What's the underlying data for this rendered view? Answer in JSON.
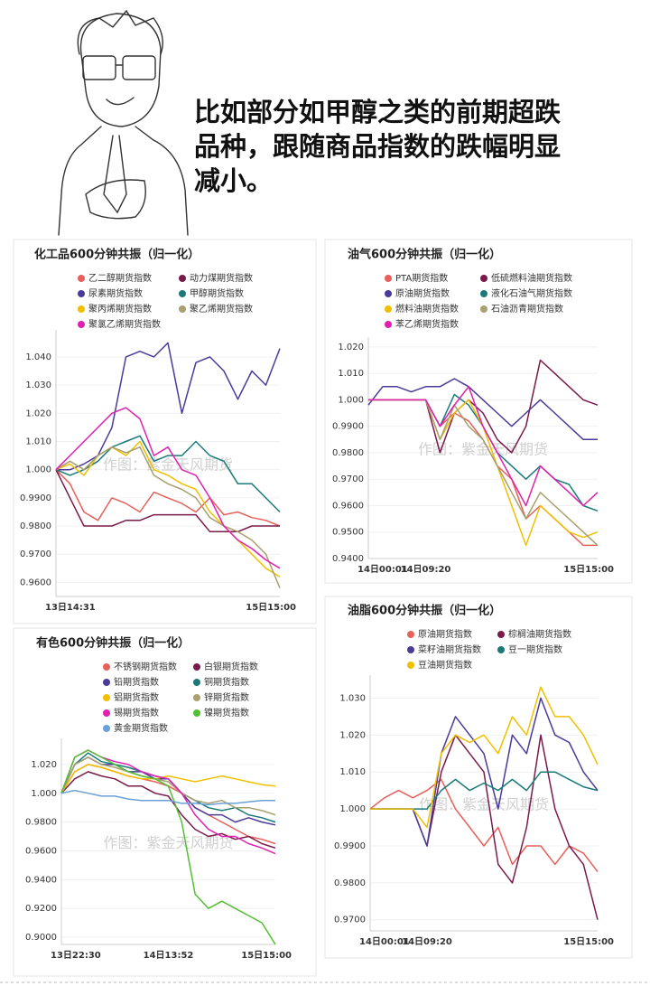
{
  "caption": [
    "比如部分如甲醇之类的前期超跌",
    "品种，跟随商品指数的跌幅明显",
    "减小。"
  ],
  "chart_data": [
    {
      "type": "line",
      "title": "化工品600分钟共振（归一化）",
      "watermark": "作图：紫金天风期货",
      "categories": [
        "13日14:31",
        null,
        null,
        null,
        null,
        null,
        null,
        null,
        null,
        null,
        null,
        null,
        null,
        null,
        null,
        null,
        "15日15:00"
      ],
      "ylim": [
        0.955,
        1.048
      ],
      "grid": true,
      "yticks": [
        {
          "value": 0.96,
          "label": "0.9600"
        },
        {
          "value": 0.97,
          "label": "0.9700"
        },
        {
          "value": 0.98,
          "label": "0.9800"
        },
        {
          "value": 0.99,
          "label": "0.9900"
        },
        {
          "value": 1.0,
          "label": "1.000"
        },
        {
          "value": 1.01,
          "label": "1.010"
        },
        {
          "value": 1.02,
          "label": "1.020"
        },
        {
          "value": 1.03,
          "label": "1.030"
        },
        {
          "value": 1.04,
          "label": "1.040"
        }
      ],
      "series": [
        {
          "name": "乙二醇期货指数",
          "color": "#e8605a",
          "values": [
            1.0,
            0.995,
            0.985,
            0.982,
            0.99,
            0.988,
            0.985,
            0.992,
            0.99,
            0.988,
            0.985,
            0.99,
            0.984,
            0.985,
            0.983,
            0.982,
            0.98
          ]
        },
        {
          "name": "动力煤期货指数",
          "color": "#7a1a4a",
          "values": [
            1.0,
            0.99,
            0.98,
            0.98,
            0.98,
            0.982,
            0.982,
            0.984,
            0.984,
            0.984,
            0.984,
            0.978,
            0.978,
            0.978,
            0.98,
            0.98,
            0.98
          ]
        },
        {
          "name": "尿素期货指数",
          "color": "#4a3a9a",
          "values": [
            1.0,
            1.0,
            1.002,
            1.005,
            1.015,
            1.04,
            1.042,
            1.04,
            1.045,
            1.02,
            1.038,
            1.04,
            1.035,
            1.025,
            1.035,
            1.03,
            1.043
          ]
        },
        {
          "name": "甲醇期货指数",
          "color": "#1a7a7a",
          "values": [
            1.0,
            0.998,
            1.0,
            1.003,
            1.008,
            1.01,
            1.012,
            1.003,
            1.005,
            1.005,
            1.01,
            1.005,
            1.003,
            0.995,
            0.995,
            0.99,
            0.985
          ]
        },
        {
          "name": "聚丙烯期货指数",
          "color": "#f0c000",
          "values": [
            1.0,
            1.002,
            0.998,
            1.005,
            1.008,
            1.005,
            1.01,
            1.0,
            0.998,
            0.995,
            0.993,
            0.985,
            0.98,
            0.975,
            0.97,
            0.965,
            0.962
          ]
        },
        {
          "name": "聚乙烯期货指数",
          "color": "#a8a070",
          "values": [
            1.0,
            1.003,
            1.0,
            1.005,
            1.008,
            1.006,
            1.008,
            0.998,
            0.995,
            0.993,
            0.99,
            0.983,
            0.98,
            0.978,
            0.975,
            0.97,
            0.958
          ]
        },
        {
          "name": "聚氯乙烯期货指数",
          "color": "#e020b0",
          "values": [
            1.0,
            1.005,
            1.01,
            1.015,
            1.02,
            1.022,
            1.018,
            1.005,
            1.008,
            1.0,
            0.998,
            0.99,
            0.98,
            0.975,
            0.972,
            0.968,
            0.965
          ]
        }
      ]
    },
    {
      "type": "line",
      "title": "油气600分钟共振（归一化）",
      "watermark": "作图：紫金天风期货",
      "categories": [
        "14日00:01",
        null,
        null,
        null,
        "14日09:20",
        null,
        null,
        null,
        null,
        null,
        null,
        null,
        null,
        null,
        null,
        null,
        "15日15:00"
      ],
      "ylim": [
        0.94,
        1.022
      ],
      "grid": true,
      "yticks": [
        {
          "value": 0.94,
          "label": "0.9400"
        },
        {
          "value": 0.95,
          "label": "0.9500"
        },
        {
          "value": 0.96,
          "label": "0.9600"
        },
        {
          "value": 0.97,
          "label": "0.9700"
        },
        {
          "value": 0.98,
          "label": "0.9800"
        },
        {
          "value": 0.99,
          "label": "0.9900"
        },
        {
          "value": 1.0,
          "label": "1.000"
        },
        {
          "value": 1.01,
          "label": "1.010"
        },
        {
          "value": 1.02,
          "label": "1.020"
        }
      ],
      "series": [
        {
          "name": "PTA期货指数",
          "color": "#e8605a",
          "values": [
            1.0,
            1.0,
            1.0,
            1.0,
            1.0,
            0.99,
            0.995,
            0.992,
            0.985,
            0.975,
            0.97,
            0.955,
            0.96,
            0.955,
            0.95,
            0.945,
            0.945
          ]
        },
        {
          "name": "低硫燃料油期货指数",
          "color": "#7a1a4a",
          "values": [
            1.0,
            1.0,
            1.0,
            1.0,
            1.0,
            0.98,
            0.995,
            1.0,
            0.995,
            0.985,
            0.98,
            0.99,
            1.015,
            1.01,
            1.005,
            1.0,
            0.998
          ]
        },
        {
          "name": "原油期货指数",
          "color": "#4a3a9a",
          "values": [
            0.998,
            1.005,
            1.005,
            1.003,
            1.005,
            1.005,
            1.008,
            1.005,
            1.0,
            0.995,
            0.99,
            0.995,
            1.0,
            0.995,
            0.99,
            0.985,
            0.985
          ]
        },
        {
          "name": "液化石油气期货指数",
          "color": "#1a7a7a",
          "values": [
            1.0,
            1.0,
            1.0,
            1.0,
            1.0,
            0.99,
            1.002,
            0.998,
            0.99,
            0.98,
            0.975,
            0.97,
            0.975,
            0.97,
            0.968,
            0.96,
            0.958
          ]
        },
        {
          "name": "燃料油期货指数",
          "color": "#f0c000",
          "values": [
            1.0,
            1.0,
            1.0,
            1.0,
            1.0,
            0.985,
            0.995,
            1.0,
            0.99,
            0.975,
            0.96,
            0.945,
            0.96,
            0.955,
            0.95,
            0.948,
            0.95
          ]
        },
        {
          "name": "石油沥青期货指数",
          "color": "#a8a070",
          "values": [
            1.0,
            1.0,
            1.0,
            1.0,
            1.0,
            0.985,
            0.998,
            0.99,
            0.985,
            0.975,
            0.965,
            0.955,
            0.965,
            0.96,
            0.955,
            0.95,
            0.945
          ]
        },
        {
          "name": "苯乙烯期货指数",
          "color": "#e020b0",
          "values": [
            1.0,
            1.0,
            1.0,
            1.0,
            1.0,
            0.99,
            0.998,
            1.005,
            0.99,
            0.98,
            0.97,
            0.96,
            0.975,
            0.97,
            0.965,
            0.96,
            0.965
          ]
        }
      ]
    },
    {
      "type": "line",
      "title": "有色600分钟共振（归一化）",
      "watermark": "作图：紫金天风期货",
      "categories": [
        "13日22:30",
        null,
        null,
        null,
        null,
        null,
        null,
        null,
        "14日13:52",
        null,
        null,
        null,
        null,
        null,
        null,
        null,
        "15日15:00"
      ],
      "ylim": [
        0.895,
        1.035
      ],
      "grid": true,
      "yticks": [
        {
          "value": 0.9,
          "label": "0.9000"
        },
        {
          "value": 0.92,
          "label": "0.9200"
        },
        {
          "value": 0.94,
          "label": "0.9400"
        },
        {
          "value": 0.96,
          "label": "0.9600"
        },
        {
          "value": 0.98,
          "label": "0.9800"
        },
        {
          "value": 1.0,
          "label": "1.000"
        },
        {
          "value": 1.02,
          "label": "1.020"
        }
      ],
      "series": [
        {
          "name": "不锈钢期货指数",
          "color": "#e8605a",
          "values": [
            1.0,
            1.015,
            1.02,
            1.018,
            1.015,
            1.012,
            1.01,
            1.008,
            1.005,
            1.0,
            0.99,
            0.985,
            0.98,
            0.975,
            0.97,
            0.968,
            0.965
          ]
        },
        {
          "name": "白银期货指数",
          "color": "#7a1a4a",
          "values": [
            1.0,
            1.01,
            1.015,
            1.012,
            1.01,
            1.005,
            1.005,
            1.0,
            0.998,
            0.985,
            0.975,
            0.97,
            0.972,
            0.968,
            0.97,
            0.965,
            0.962
          ]
        },
        {
          "name": "铅期货指数",
          "color": "#4a3a9a",
          "values": [
            1.0,
            1.02,
            1.025,
            1.02,
            1.02,
            1.015,
            1.015,
            1.01,
            1.01,
            1.0,
            0.99,
            0.985,
            0.985,
            0.98,
            0.983,
            0.98,
            0.978
          ]
        },
        {
          "name": "铜期货指数",
          "color": "#1a7a7a",
          "values": [
            1.0,
            1.02,
            1.028,
            1.022,
            1.02,
            1.018,
            1.015,
            1.012,
            1.01,
            1.0,
            0.995,
            0.99,
            0.988,
            0.99,
            0.985,
            0.983,
            0.98
          ]
        },
        {
          "name": "铝期货指数",
          "color": "#f0c000",
          "values": [
            1.0,
            1.015,
            1.02,
            1.018,
            1.015,
            1.012,
            1.01,
            1.01,
            1.012,
            1.01,
            1.008,
            1.01,
            1.012,
            1.01,
            1.008,
            1.006,
            1.005
          ]
        },
        {
          "name": "锌期货指数",
          "color": "#a8a070",
          "values": [
            1.0,
            1.02,
            1.025,
            1.02,
            1.018,
            1.015,
            1.012,
            1.01,
            1.008,
            1.0,
            0.995,
            0.993,
            0.995,
            0.99,
            0.99,
            0.988,
            0.985
          ]
        },
        {
          "name": "锡期货指数",
          "color": "#e020b0",
          "values": [
            1.0,
            1.025,
            1.03,
            1.025,
            1.022,
            1.02,
            1.015,
            1.012,
            1.01,
            1.0,
            0.985,
            0.975,
            0.97,
            0.97,
            0.965,
            0.962,
            0.958
          ]
        },
        {
          "name": "镍期货指数",
          "color": "#50c030",
          "values": [
            1.0,
            1.025,
            1.03,
            1.025,
            1.02,
            1.015,
            1.012,
            1.01,
            1.005,
            0.98,
            0.93,
            0.92,
            0.925,
            0.92,
            0.915,
            0.91,
            0.895
          ]
        },
        {
          "name": "黄金期货指数",
          "color": "#6aa0d8",
          "values": [
            1.0,
            1.002,
            1.0,
            0.998,
            0.998,
            0.996,
            0.995,
            0.995,
            0.995,
            0.993,
            0.993,
            0.992,
            0.993,
            0.993,
            0.994,
            0.995,
            0.995
          ]
        }
      ]
    },
    {
      "type": "line",
      "title": "油脂600分钟共振（归一化）",
      "watermark": "作图：紫金天风期货",
      "categories": [
        "14日00:01",
        null,
        null,
        null,
        "14日09:20",
        null,
        null,
        null,
        null,
        null,
        null,
        null,
        null,
        null,
        null,
        null,
        "15日15:00"
      ],
      "ylim": [
        0.967,
        1.035
      ],
      "grid": true,
      "yticks": [
        {
          "value": 0.97,
          "label": "0.9700"
        },
        {
          "value": 0.98,
          "label": "0.9800"
        },
        {
          "value": 0.99,
          "label": "0.9900"
        },
        {
          "value": 1.0,
          "label": "1.000"
        },
        {
          "value": 1.01,
          "label": "1.010"
        },
        {
          "value": 1.02,
          "label": "1.020"
        },
        {
          "value": 1.03,
          "label": "1.030"
        }
      ],
      "series": [
        {
          "name": "原油期货指数",
          "color": "#e8605a",
          "values": [
            1.0,
            1.003,
            1.005,
            1.003,
            1.005,
            1.008,
            1.0,
            0.995,
            0.99,
            0.995,
            0.985,
            0.99,
            0.99,
            0.985,
            0.99,
            0.988,
            0.983
          ]
        },
        {
          "name": "棕榈油期货指数",
          "color": "#7a1a4a",
          "values": [
            1.0,
            1.0,
            1.0,
            1.0,
            0.99,
            1.01,
            1.02,
            1.015,
            1.01,
            0.985,
            0.98,
            0.995,
            1.02,
            1.0,
            0.99,
            0.985,
            0.97
          ]
        },
        {
          "name": "菜籽油期货指数",
          "color": "#4a3a9a",
          "values": [
            1.0,
            1.0,
            1.0,
            1.0,
            0.99,
            1.015,
            1.025,
            1.02,
            1.015,
            1.0,
            1.02,
            1.015,
            1.03,
            1.02,
            1.018,
            1.01,
            1.005
          ]
        },
        {
          "name": "豆一期货指数",
          "color": "#1a7a7a",
          "values": [
            1.0,
            1.0,
            1.0,
            1.0,
            1.0,
            1.005,
            1.008,
            1.005,
            1.007,
            1.005,
            1.008,
            1.005,
            1.01,
            1.01,
            1.008,
            1.006,
            1.005
          ]
        },
        {
          "name": "豆油期货指数",
          "color": "#f0c000",
          "values": [
            1.0,
            1.0,
            1.0,
            1.0,
            0.995,
            1.015,
            1.02,
            1.018,
            1.02,
            1.015,
            1.025,
            1.02,
            1.033,
            1.025,
            1.025,
            1.02,
            1.012
          ]
        }
      ]
    }
  ]
}
